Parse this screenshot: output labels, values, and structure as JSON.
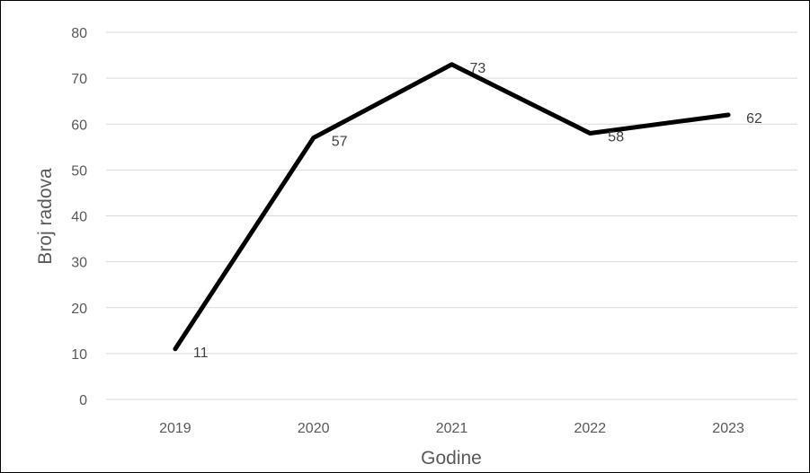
{
  "chart_data": {
    "type": "line",
    "title": "",
    "xlabel": "Godine",
    "ylabel": "Broj radova",
    "ylim": [
      0,
      80
    ],
    "yticks": [
      0,
      10,
      20,
      30,
      40,
      50,
      60,
      70,
      80
    ],
    "grid": true,
    "legend": "none",
    "colors": {
      "line": "#000000",
      "grid": "#d9d9d9",
      "tick_text": "#595959"
    },
    "categories": [
      "2019",
      "2020",
      "2021",
      "2022",
      "2023"
    ],
    "series": [
      {
        "values": [
          11,
          57,
          73,
          58,
          62
        ]
      }
    ]
  }
}
